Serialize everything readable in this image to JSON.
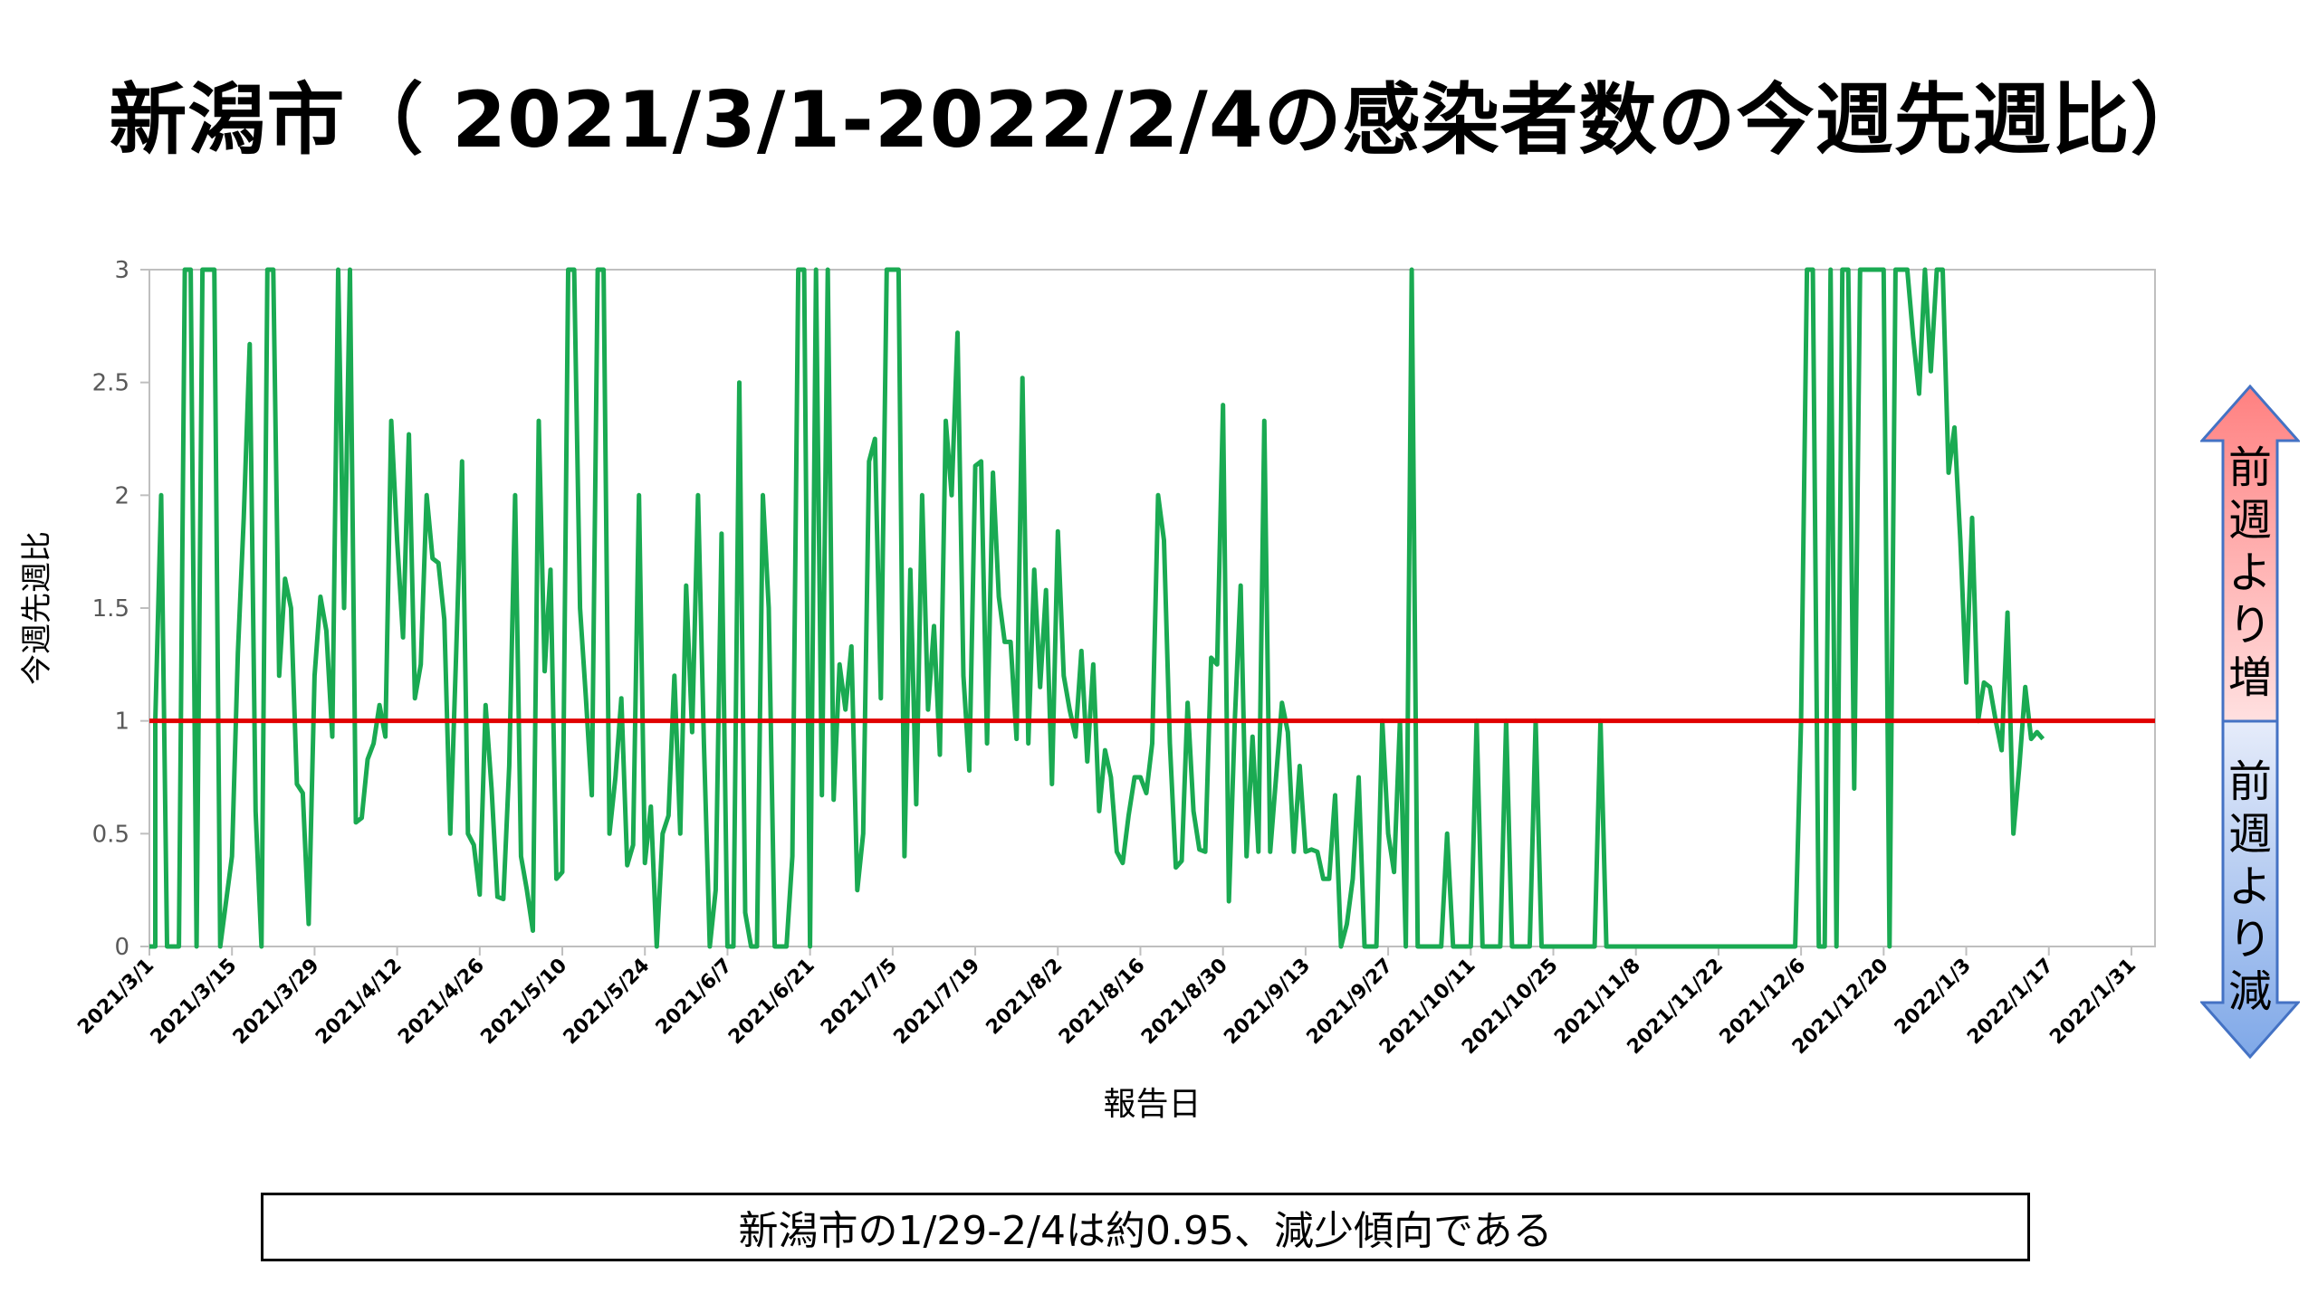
{
  "title": "新潟市（ 2021/3/1-2022/2/4の感染者数の今週先週比）",
  "summary": "新潟市の1/29-2/4は約0.95、減少傾向である",
  "indicator": {
    "up_label": "前週より増",
    "down_label": "前週より減",
    "up_color": "#ff7c7c",
    "down_color": "#7fa8e8"
  },
  "colors": {
    "series": "#1aaa52",
    "reference": "#e00000"
  },
  "chart_data": {
    "type": "line",
    "title": "",
    "xlabel": "報告日",
    "ylabel": "今週先週比",
    "ylim": [
      0,
      3
    ],
    "yticks": [
      0,
      0.5,
      1,
      1.5,
      2,
      2.5,
      3
    ],
    "ytick_labels": [
      "0",
      "0.5",
      "1",
      "1.5",
      "2",
      "2.5",
      "3"
    ],
    "x_start": "2021/3/1",
    "x_end": "2022/2/4",
    "xtick_labels": [
      "2021/3/1",
      "2021/3/15",
      "2021/3/29",
      "2021/4/12",
      "2021/4/26",
      "2021/5/10",
      "2021/5/24",
      "2021/6/7",
      "2021/6/21",
      "2021/7/5",
      "2021/7/19",
      "2021/8/2",
      "2021/8/16",
      "2021/8/30",
      "2021/9/13",
      "2021/9/27",
      "2021/10/11",
      "2021/10/25",
      "2021/11/8",
      "2021/11/22",
      "2021/12/6",
      "2021/12/20",
      "2022/1/3",
      "2022/1/17",
      "2022/1/31"
    ],
    "reference_line": 1,
    "grid": false,
    "series": [
      {
        "values": [
          [
            0,
            0
          ],
          [
            1,
            0
          ],
          [
            1,
            1
          ],
          [
            2,
            2
          ],
          [
            3,
            0
          ],
          [
            5,
            0
          ],
          [
            6,
            3
          ],
          [
            7,
            3
          ],
          [
            8,
            0
          ],
          [
            9,
            3
          ],
          [
            10,
            3
          ],
          [
            11,
            3
          ],
          [
            12,
            0
          ],
          [
            13,
            0.2
          ],
          [
            14,
            0.4
          ],
          [
            15,
            1.3
          ],
          [
            16,
            1.9
          ],
          [
            17,
            2.67
          ],
          [
            18,
            0.6
          ],
          [
            19,
            0
          ],
          [
            20,
            3
          ],
          [
            21,
            3
          ],
          [
            22,
            1.2
          ],
          [
            23,
            1.63
          ],
          [
            24,
            1.5
          ],
          [
            25,
            0.72
          ],
          [
            26,
            0.68
          ],
          [
            27,
            0.1
          ],
          [
            28,
            1.2
          ],
          [
            29,
            1.55
          ],
          [
            30,
            1.4
          ],
          [
            31,
            0.93
          ],
          [
            32,
            3
          ],
          [
            33,
            1.5
          ],
          [
            34,
            3
          ],
          [
            35,
            0.55
          ],
          [
            36,
            0.57
          ],
          [
            37,
            0.83
          ],
          [
            38,
            0.9
          ],
          [
            39,
            1.07
          ],
          [
            40,
            0.93
          ],
          [
            41,
            2.33
          ],
          [
            42,
            1.8
          ],
          [
            43,
            1.37
          ],
          [
            44,
            2.27
          ],
          [
            45,
            1.1
          ],
          [
            46,
            1.25
          ],
          [
            47,
            2
          ],
          [
            48,
            1.72
          ],
          [
            49,
            1.7
          ],
          [
            50,
            1.45
          ],
          [
            51,
            0.5
          ],
          [
            52,
            1.3
          ],
          [
            53,
            2.15
          ],
          [
            54,
            0.5
          ],
          [
            55,
            0.45
          ],
          [
            56,
            0.23
          ],
          [
            57,
            1.07
          ],
          [
            58,
            0.7
          ],
          [
            59,
            0.22
          ],
          [
            60,
            0.21
          ],
          [
            61,
            0.8
          ],
          [
            62,
            2
          ],
          [
            63,
            0.4
          ],
          [
            64,
            0.25
          ],
          [
            65,
            0.07
          ],
          [
            66,
            2.33
          ],
          [
            67,
            1.22
          ],
          [
            68,
            1.67
          ],
          [
            69,
            0.3
          ],
          [
            70,
            0.33
          ],
          [
            71,
            3
          ],
          [
            72,
            3
          ],
          [
            73,
            1.5
          ],
          [
            74,
            1.1
          ],
          [
            75,
            0.67
          ],
          [
            76,
            3
          ],
          [
            77,
            3
          ],
          [
            78,
            0.5
          ],
          [
            79,
            0.75
          ],
          [
            80,
            1.1
          ],
          [
            81,
            0.36
          ],
          [
            82,
            0.45
          ],
          [
            83,
            2
          ],
          [
            84,
            0.37
          ],
          [
            85,
            0.62
          ],
          [
            86,
            0
          ],
          [
            87,
            0.5
          ],
          [
            88,
            0.58
          ],
          [
            89,
            1.2
          ],
          [
            90,
            0.5
          ],
          [
            91,
            1.6
          ],
          [
            92,
            0.95
          ],
          [
            93,
            2
          ],
          [
            94,
            0.9
          ],
          [
            95,
            0
          ],
          [
            96,
            0.25
          ],
          [
            97,
            1.83
          ],
          [
            98,
            0
          ],
          [
            99,
            0
          ],
          [
            100,
            2.5
          ],
          [
            101,
            0.15
          ],
          [
            102,
            0
          ],
          [
            103,
            0
          ],
          [
            104,
            2
          ],
          [
            105,
            1.5
          ],
          [
            106,
            0
          ],
          [
            107,
            0
          ],
          [
            108,
            0
          ],
          [
            109,
            0.4
          ],
          [
            110,
            3
          ],
          [
            111,
            3
          ],
          [
            112,
            0
          ],
          [
            113,
            3
          ],
          [
            114,
            0.67
          ],
          [
            115,
            3
          ],
          [
            116,
            0.65
          ],
          [
            117,
            1.25
          ],
          [
            118,
            1.05
          ],
          [
            119,
            1.33
          ],
          [
            120,
            0.25
          ],
          [
            121,
            0.5
          ],
          [
            122,
            2.15
          ],
          [
            123,
            2.25
          ],
          [
            124,
            1.1
          ],
          [
            125,
            3
          ],
          [
            126,
            3
          ],
          [
            127,
            3
          ],
          [
            128,
            0.4
          ],
          [
            129,
            1.67
          ],
          [
            130,
            0.63
          ],
          [
            131,
            2
          ],
          [
            132,
            1.05
          ],
          [
            133,
            1.42
          ],
          [
            134,
            0.85
          ],
          [
            135,
            2.33
          ],
          [
            136,
            2
          ],
          [
            137,
            2.72
          ],
          [
            138,
            1.2
          ],
          [
            139,
            0.78
          ],
          [
            140,
            2.13
          ],
          [
            141,
            2.15
          ],
          [
            142,
            0.9
          ],
          [
            143,
            2.1
          ],
          [
            144,
            1.55
          ],
          [
            145,
            1.35
          ],
          [
            146,
            1.35
          ],
          [
            147,
            0.92
          ],
          [
            148,
            2.52
          ],
          [
            149,
            0.9
          ],
          [
            150,
            1.67
          ],
          [
            151,
            1.15
          ],
          [
            152,
            1.58
          ],
          [
            153,
            0.72
          ],
          [
            154,
            1.84
          ],
          [
            155,
            1.2
          ],
          [
            156,
            1.05
          ],
          [
            157,
            0.93
          ],
          [
            158,
            1.31
          ],
          [
            159,
            0.82
          ],
          [
            160,
            1.25
          ],
          [
            161,
            0.6
          ],
          [
            162,
            0.87
          ],
          [
            163,
            0.75
          ],
          [
            164,
            0.42
          ],
          [
            165,
            0.37
          ],
          [
            166,
            0.58
          ],
          [
            167,
            0.75
          ],
          [
            168,
            0.75
          ],
          [
            169,
            0.68
          ],
          [
            170,
            0.9
          ],
          [
            171,
            2
          ],
          [
            172,
            1.8
          ],
          [
            173,
            0.9
          ],
          [
            174,
            0.35
          ],
          [
            175,
            0.38
          ],
          [
            176,
            1.08
          ],
          [
            177,
            0.6
          ],
          [
            178,
            0.43
          ],
          [
            179,
            0.42
          ],
          [
            180,
            1.28
          ],
          [
            181,
            1.25
          ],
          [
            182,
            2.4
          ],
          [
            183,
            0.2
          ],
          [
            184,
            1
          ],
          [
            185,
            1.6
          ],
          [
            186,
            0.4
          ],
          [
            187,
            0.93
          ],
          [
            188,
            0.42
          ],
          [
            189,
            2.33
          ],
          [
            190,
            0.42
          ],
          [
            191,
            0.75
          ],
          [
            192,
            1.08
          ],
          [
            193,
            0.95
          ],
          [
            194,
            0.42
          ],
          [
            195,
            0.8
          ],
          [
            196,
            0.42
          ],
          [
            197,
            0.43
          ],
          [
            198,
            0.42
          ],
          [
            199,
            0.3
          ],
          [
            200,
            0.3
          ],
          [
            201,
            0.67
          ],
          [
            202,
            0
          ],
          [
            203,
            0.1
          ],
          [
            204,
            0.3
          ],
          [
            205,
            0.75
          ],
          [
            206,
            0
          ],
          [
            207,
            0
          ],
          [
            208,
            0
          ],
          [
            209,
            1
          ],
          [
            210,
            0.5
          ],
          [
            211,
            0.33
          ],
          [
            212,
            1
          ],
          [
            213,
            0
          ],
          [
            214,
            3
          ],
          [
            215,
            0
          ],
          [
            216,
            0
          ],
          [
            217,
            0
          ],
          [
            218,
            0
          ],
          [
            219,
            0
          ],
          [
            220,
            0.5
          ],
          [
            221,
            0
          ],
          [
            222,
            0
          ],
          [
            223,
            0
          ],
          [
            224,
            0
          ],
          [
            225,
            1
          ],
          [
            226,
            0
          ],
          [
            227,
            0
          ],
          [
            228,
            0
          ],
          [
            229,
            0
          ],
          [
            230,
            1
          ],
          [
            231,
            0
          ],
          [
            232,
            0
          ],
          [
            233,
            0
          ],
          [
            234,
            0
          ],
          [
            235,
            1
          ],
          [
            236,
            0
          ],
          [
            237,
            0
          ],
          [
            238,
            0
          ],
          [
            239,
            0
          ],
          [
            240,
            0
          ],
          [
            241,
            0
          ],
          [
            242,
            0
          ],
          [
            243,
            0
          ],
          [
            244,
            0
          ],
          [
            245,
            0
          ],
          [
            246,
            1
          ],
          [
            247,
            0
          ],
          [
            248,
            0
          ],
          [
            249,
            0
          ],
          [
            250,
            0
          ],
          [
            251,
            0
          ],
          [
            252,
            0
          ],
          [
            253,
            0
          ],
          [
            254,
            0
          ],
          [
            255,
            0
          ],
          [
            256,
            0
          ],
          [
            257,
            0
          ],
          [
            258,
            0
          ],
          [
            259,
            0
          ],
          [
            260,
            0
          ],
          [
            261,
            0
          ],
          [
            262,
            0
          ],
          [
            263,
            0
          ],
          [
            264,
            0
          ],
          [
            265,
            0
          ],
          [
            266,
            0
          ],
          [
            267,
            0
          ],
          [
            268,
            0
          ],
          [
            269,
            0
          ],
          [
            270,
            0
          ],
          [
            271,
            0
          ],
          [
            272,
            0
          ],
          [
            273,
            0
          ],
          [
            274,
            0
          ],
          [
            275,
            0
          ],
          [
            276,
            0
          ],
          [
            277,
            0
          ],
          [
            278,
            0
          ],
          [
            279,
            0
          ],
          [
            280,
            1
          ],
          [
            281,
            3
          ],
          [
            282,
            3
          ],
          [
            283,
            0
          ],
          [
            284,
            0
          ],
          [
            285,
            3
          ],
          [
            286,
            0
          ],
          [
            287,
            3
          ],
          [
            288,
            3
          ],
          [
            289,
            0.7
          ],
          [
            290,
            3
          ],
          [
            291,
            3
          ],
          [
            292,
            3
          ],
          [
            293,
            3
          ],
          [
            294,
            3
          ],
          [
            295,
            0
          ],
          [
            296,
            3
          ],
          [
            297,
            3
          ],
          [
            298,
            3
          ],
          [
            299,
            2.7
          ],
          [
            300,
            2.45
          ],
          [
            301,
            3
          ],
          [
            302,
            2.55
          ],
          [
            303,
            3
          ],
          [
            304,
            3
          ],
          [
            305,
            2.1
          ],
          [
            306,
            2.3
          ],
          [
            307,
            1.8
          ],
          [
            308,
            1.17
          ],
          [
            309,
            1.9
          ],
          [
            310,
            1
          ],
          [
            311,
            1.17
          ],
          [
            312,
            1.15
          ],
          [
            313,
            1
          ],
          [
            314,
            0.87
          ],
          [
            315,
            1.48
          ],
          [
            316,
            0.5
          ],
          [
            317,
            0.8
          ],
          [
            318,
            1.15
          ],
          [
            319,
            0.92
          ],
          [
            320,
            0.95
          ],
          [
            321,
            0.92
          ]
        ]
      }
    ]
  }
}
